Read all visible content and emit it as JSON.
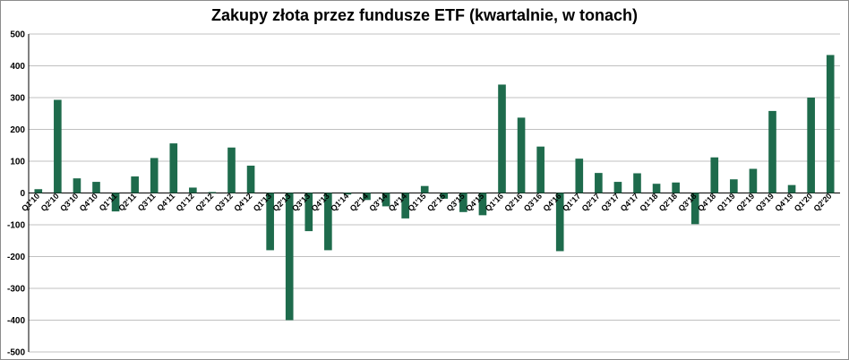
{
  "chart_data": {
    "type": "bar",
    "title": "Zakupy złota przez fundusze ETF (kwartalnie, w tonach)",
    "xlabel": "",
    "ylabel": "",
    "ylim": [
      -500,
      500
    ],
    "y_ticks": [
      500,
      400,
      300,
      200,
      100,
      0,
      -100,
      -200,
      -300,
      -400,
      -500
    ],
    "grid": true,
    "bar_color": "#1e6b4c",
    "categories": [
      "Q1'10",
      "Q2'10",
      "Q3'10",
      "Q4'10",
      "Q1'11",
      "Q2'11",
      "Q3'11",
      "Q4'11",
      "Q1'12",
      "Q2'12",
      "Q3'12",
      "Q4'12",
      "Q1'13",
      "Q2'13",
      "Q3'13",
      "Q4'13",
      "Q1'14",
      "Q2'14",
      "Q3'14",
      "Q4'14",
      "Q1'15",
      "Q2'15",
      "Q3'15",
      "Q4'15",
      "Q1'16",
      "Q2'16",
      "Q3'16",
      "Q4'16",
      "Q1'17",
      "Q2'17",
      "Q3'17",
      "Q4'17",
      "Q1'18",
      "Q2'18",
      "Q3'18",
      "Q4'18",
      "Q1'19",
      "Q2'19",
      "Q3'19",
      "Q4'19",
      "Q1'20",
      "Q2'20"
    ],
    "values": [
      12,
      293,
      46,
      35,
      -58,
      52,
      110,
      156,
      17,
      3,
      143,
      86,
      -180,
      -400,
      -120,
      -180,
      -5,
      -22,
      -42,
      -80,
      22,
      -18,
      -60,
      -70,
      341,
      237,
      146,
      -183,
      108,
      63,
      35,
      62,
      29,
      33,
      -98,
      112,
      43,
      76,
      258,
      25,
      300,
      434
    ]
  }
}
